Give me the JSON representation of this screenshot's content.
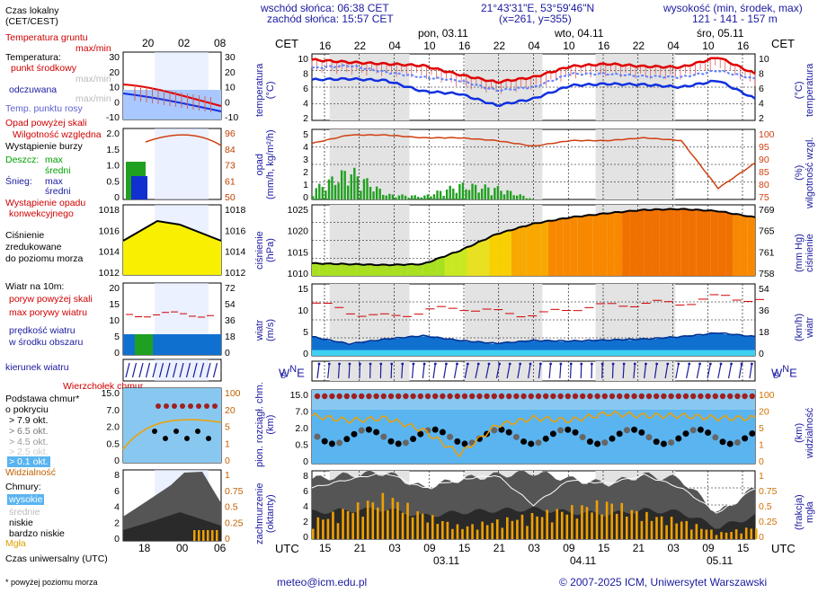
{
  "header": {
    "sunrise": "wschód słońca: 06:38 CET",
    "sunset": "zachód słońca: 15:57 CET",
    "coords": "21°43'31\"E, 53°59'46\"N",
    "grid": "(x=261,  y=355)",
    "height_title": "wysokość (min, środek, max)",
    "height_values": "121 - 141 - 157 m"
  },
  "legend": {
    "local_time": "Czas lokalny",
    "local_time_zone": "(CET/CEST)",
    "soil_temp": "Temperatura gruntu",
    "soil_temp_range": "max/min",
    "temperature": "Temperatura:",
    "mid_point": "punkt środkowy",
    "max_min": "max/min",
    "felt": "odczuwana",
    "felt_range": "max/min",
    "dew_point": "Temp. punktu rosy",
    "precip_above": "Opad powyżej skali",
    "humidity": "Wilgotność względna",
    "storm": "Wystąpienie burzy",
    "rain": "Deszcz:",
    "rain_max": "max",
    "rain_mean": "średni",
    "snow": "Śnieg:",
    "snow_max": "max",
    "snow_mean": "średni",
    "convective": "Wystąpienie opadu",
    "convective2": "konwekcyjnego",
    "pressure1": "Ciśnienie",
    "pressure2": "zredukowane",
    "pressure3": "do poziomu morza",
    "wind_title": "Wiatr na 10m:",
    "gust_above": "poryw powyżej skali",
    "gust_max": "max porywy wiatru",
    "wind_speed1": "prędkość wiatru",
    "wind_speed2": "w środku obszaru",
    "wind_dir": "kierunek wiatru",
    "chmur_top": "Wierzchołek chmur",
    "cloud_base1": "Podstawa chmur*",
    "cloud_base2": "o pokryciu",
    "ok1": "> 7.9 okt.",
    "ok2": "> 6.5 okt.",
    "ok3": "> 4.5 okt.",
    "ok4": "> 2.5 okt.",
    "ok5": "> 0.1 okt.",
    "visibility": "Widzialność",
    "clouds": "Chmury:",
    "high": "wysokie",
    "mid": "średnie",
    "low": "niskie",
    "very_low": "bardzo niskie",
    "fog": "Mgła",
    "utc_label": "Czas uniwersalny (UTC)",
    "footnote": "* powyżej poziomu morza",
    "legend_top_ticks": [
      "20",
      "02",
      "08"
    ],
    "legend_bottom_ticks": [
      "18",
      "00",
      "06"
    ],
    "temp_ticks": [
      "30",
      "20",
      "10",
      "0",
      "-10"
    ],
    "precip_ticks": [
      "2.0",
      "1.5",
      "1.0",
      "0.5",
      "0"
    ],
    "humid_ticks": [
      "96",
      "84",
      "73",
      "61",
      "50"
    ],
    "press_ticks": [
      "1018",
      "1016",
      "1014",
      "1012"
    ],
    "wind_ticks": [
      "20",
      "15",
      "10",
      "5",
      "0"
    ],
    "wind_kmh_ticks": [
      "72",
      "54",
      "36",
      "18",
      "0"
    ],
    "cloud_ticks": [
      "15.0",
      "7.0",
      "2.0",
      "0.5",
      "0"
    ],
    "vis_ticks": [
      "100",
      "20",
      "5",
      "1",
      "0"
    ],
    "okt_ticks": [
      "8",
      "6",
      "4",
      "2",
      "0"
    ],
    "fog_ticks": [
      "1",
      "0.75",
      "0.5",
      "0.25",
      "0"
    ]
  },
  "timeline": {
    "cet": "CET",
    "utc": "UTC",
    "days_top": [
      "pon, 03.11",
      "wto, 04.11",
      "śro, 05.11"
    ],
    "days_bottom": [
      "03.11",
      "04.11",
      "05.11"
    ],
    "hours_cet": [
      "16",
      "22",
      "04",
      "10",
      "16",
      "22",
      "04",
      "10",
      "16",
      "22",
      "04",
      "10",
      "16"
    ],
    "hours_utc": [
      "15",
      "21",
      "03",
      "09",
      "15",
      "21",
      "03",
      "09",
      "15",
      "21",
      "03",
      "09",
      "15"
    ]
  },
  "panels": {
    "temp": {
      "left": "temperatura",
      "left_unit": "(°C)",
      "right": "temperatura",
      "right_unit": "(°C)",
      "left_ticks": [
        "10",
        "8",
        "6",
        "4",
        "2"
      ],
      "right_ticks": [
        "10",
        "8",
        "6",
        "4",
        "2"
      ]
    },
    "precip": {
      "left": "opad",
      "left_unit": "(mm/h, kg/m²/h)",
      "right": "wilgotność wzgl.",
      "right_unit": "(%)",
      "left_ticks": [
        "5",
        "4",
        "3",
        "2",
        "1",
        "0"
      ],
      "right_ticks": [
        "100",
        "95",
        "90",
        "85",
        "80",
        "75"
      ]
    },
    "press": {
      "left": "ciśnienie",
      "left_unit": "(hPa)",
      "right": "ciśnienie",
      "right_unit": "(mm Hg)",
      "left_ticks": [
        "1025",
        "1020",
        "1015",
        "1010"
      ],
      "right_ticks": [
        "769",
        "765",
        "761",
        "758"
      ]
    },
    "wind": {
      "left": "wiatr",
      "left_unit": "(m/s)",
      "right": "wiatr",
      "right_unit": "(km/h)",
      "left_ticks": [
        "15",
        "10",
        "5",
        "0"
      ],
      "right_ticks": [
        "54",
        "36",
        "18",
        "0"
      ]
    },
    "cloud": {
      "left": "pion. rozciągł. chm.",
      "left_unit": "(km)",
      "right": "widzialność",
      "right_unit": "(km)",
      "left_ticks": [
        "15.0",
        "7.0",
        "2.0",
        "0.5",
        "0"
      ],
      "right_ticks": [
        "100",
        "20",
        "5",
        "1",
        "0"
      ]
    },
    "cover": {
      "left": "zachmurzenie",
      "left_unit": "(oktanty)",
      "right": "mgła",
      "right_unit": "(frakcja)",
      "left_ticks": [
        "8",
        "6",
        "4",
        "2",
        "0"
      ],
      "right_ticks": [
        "1",
        "0.75",
        "0.5",
        "0.25",
        "0"
      ]
    }
  },
  "compass": {
    "n": "N",
    "s": "S",
    "w": "W",
    "e": "E"
  },
  "footer": {
    "email": "meteo@icm.edu.pl",
    "copyright": "© 2007-2025 ICM, Uniwersytet Warszawski"
  },
  "colors": {
    "temp_line": "#e00000",
    "temp_felt": "#1030e0",
    "dew": "#6080ff",
    "humidity": "#d04010",
    "precip": "#20a020",
    "wind_fill": "#1070d0",
    "pressure_line": "#000000",
    "fog": "#f0a000"
  },
  "chart_data": [
    {
      "type": "line",
      "title": "temperatura (°C)",
      "x": [
        "16",
        "22",
        "04",
        "10",
        "16",
        "22",
        "04",
        "10",
        "16",
        "22",
        "04",
        "10",
        "16"
      ],
      "series": [
        {
          "name": "temperatura (max/min)",
          "values": [
            9.3,
            9.0,
            8.8,
            8.6,
            7.5,
            6.6,
            7.2,
            8.5,
            8.8,
            8.5,
            8.4,
            9.6,
            7.6
          ]
        },
        {
          "name": "temp. punktu rosy",
          "values": [
            8.3,
            8.6,
            7.8,
            7.2,
            6.8,
            5.6,
            6.0,
            7.6,
            7.6,
            7.3,
            7.2,
            8.0,
            7.0
          ]
        },
        {
          "name": "temperatura odczuwana",
          "values": [
            6.9,
            7.0,
            6.8,
            5.5,
            5.2,
            3.8,
            4.6,
            6.2,
            6.4,
            6.3,
            6.0,
            6.8,
            4.6
          ]
        }
      ],
      "ylim": [
        2,
        10
      ]
    },
    {
      "type": "bar",
      "title": "opad (mm/h) / wilgotność (%)",
      "x": [
        "16",
        "22",
        "04",
        "10",
        "16",
        "22",
        "04",
        "10",
        "16",
        "22",
        "04",
        "10",
        "16"
      ],
      "series": [
        {
          "name": "opad",
          "values": [
            0.6,
            1.8,
            0.3,
            0.2,
            0.9,
            0.7,
            0,
            0,
            0,
            0,
            0,
            0,
            0
          ]
        },
        {
          "name": "wilgotność",
          "values": [
            95,
            98,
            98,
            97,
            97,
            96,
            94,
            96,
            96,
            97,
            96,
            79,
            88
          ]
        }
      ],
      "ylim": [
        0,
        5
      ]
    },
    {
      "type": "area",
      "title": "ciśnienie (hPa)",
      "x": [
        "16",
        "22",
        "04",
        "10",
        "16",
        "22",
        "04",
        "10",
        "16",
        "22",
        "04",
        "10",
        "16"
      ],
      "values": [
        1011,
        1010.8,
        1010.6,
        1010.8,
        1014,
        1018,
        1020.5,
        1022,
        1023,
        1023.8,
        1024,
        1023.5,
        1022
      ],
      "ylim": [
        1008,
        1025
      ]
    },
    {
      "type": "area",
      "title": "wiatr (m/s)",
      "x": [
        "16",
        "22",
        "04",
        "10",
        "16",
        "22",
        "04",
        "10",
        "16",
        "22",
        "04",
        "10",
        "16"
      ],
      "series": [
        {
          "name": "prędkość wiatru",
          "values": [
            4.0,
            2.5,
            3.5,
            4.2,
            3.2,
            2.6,
            3.2,
            3.1,
            3.3,
            3.5,
            4.0,
            4.8,
            4.0
          ]
        },
        {
          "name": "max porywy",
          "values": [
            11,
            9,
            8,
            9.5,
            10,
            9,
            8.5,
            10,
            10.5,
            11,
            11,
            12.5,
            11.5
          ]
        }
      ],
      "ylim": [
        0,
        15
      ]
    },
    {
      "type": "bar",
      "title": "zachmurzenie (oktanty) / mgła",
      "x": [
        "16",
        "22",
        "04",
        "10",
        "16",
        "22",
        "04",
        "10",
        "16",
        "22",
        "04",
        "10",
        "16"
      ],
      "series": [
        {
          "name": "mgła",
          "values": [
            0.3,
            0.5,
            0.7,
            0.4,
            0.2,
            0.3,
            0.4,
            0.5,
            0.6,
            0.4,
            0.3,
            0.1,
            0.2
          ]
        },
        {
          "name": "zachmurzenie",
          "values": [
            7,
            7.5,
            7.8,
            6,
            7,
            7.5,
            7.8,
            7,
            6.5,
            7.5,
            7,
            3,
            6
          ]
        }
      ],
      "ylim": [
        0,
        8
      ]
    }
  ]
}
